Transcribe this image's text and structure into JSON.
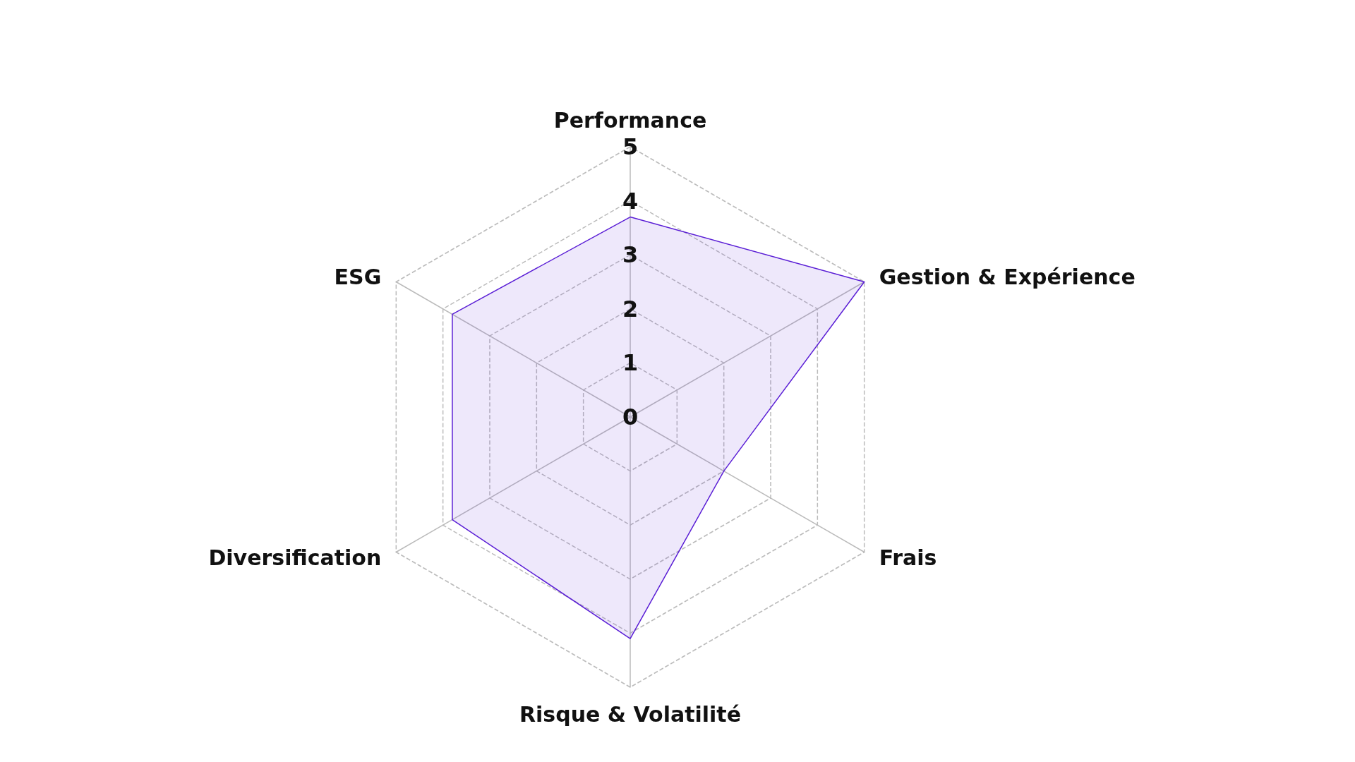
{
  "chart_data": {
    "type": "radar",
    "categories": [
      "Performance",
      "Gestion & Expérience",
      "Frais",
      "Risque & Volatilité",
      "Diversification",
      "ESG"
    ],
    "series": [
      {
        "color": "#5b1fd6",
        "values": [
          3.7,
          5,
          2,
          4.1,
          3.8,
          3.8
        ]
      }
    ],
    "ylim": [
      0,
      5
    ],
    "yticks": [
      0,
      1,
      2,
      3,
      4,
      5
    ],
    "grid": true,
    "marker": "none",
    "line_style": "solid"
  }
}
